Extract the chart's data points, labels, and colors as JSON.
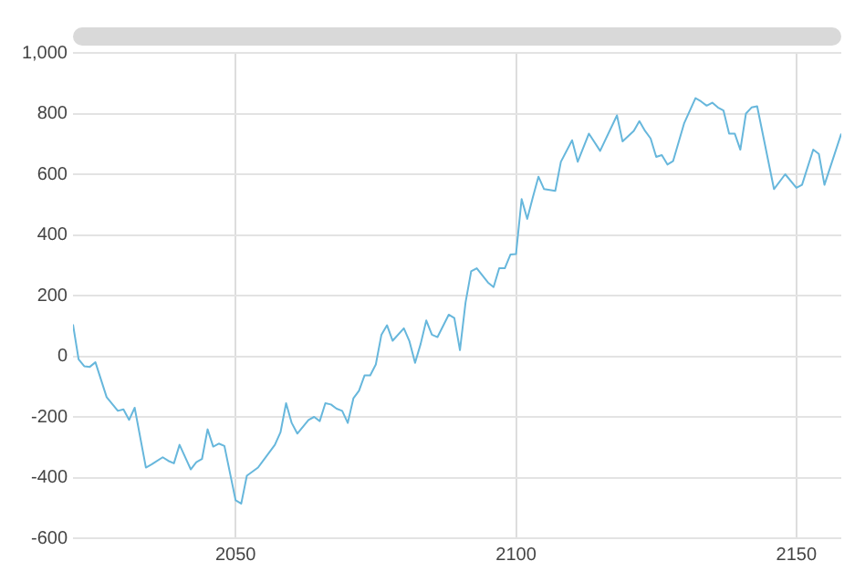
{
  "chart_data": {
    "type": "line",
    "x": [
      2021,
      2022,
      2023,
      2024,
      2025,
      2027,
      2029,
      2030,
      2031,
      2032,
      2034,
      2035,
      2037,
      2038,
      2039,
      2040,
      2042,
      2043,
      2044,
      2045,
      2046,
      2047,
      2048,
      2050,
      2051,
      2052,
      2054,
      2057,
      2058,
      2059,
      2060,
      2061,
      2063,
      2064,
      2065,
      2066,
      2067,
      2068,
      2069,
      2070,
      2071,
      2072,
      2073,
      2074,
      2075,
      2076,
      2077,
      2078,
      2080,
      2081,
      2082,
      2083,
      2084,
      2085,
      2086,
      2088,
      2089,
      2090,
      2091,
      2092,
      2093,
      2095,
      2096,
      2097,
      2098,
      2099,
      2100,
      2101,
      2102,
      2103,
      2104,
      2105,
      2107,
      2108,
      2110,
      2111,
      2113,
      2115,
      2118,
      2119,
      2121,
      2122,
      2123,
      2124,
      2125,
      2126,
      2127,
      2128,
      2130,
      2132,
      2133,
      2134,
      2135,
      2136,
      2137,
      2138,
      2139,
      2140,
      2141,
      2142,
      2143,
      2146,
      2148,
      2150,
      2151,
      2153,
      2154,
      2155,
      2158
    ],
    "series": [
      {
        "color": "#67b7dc",
        "values": [
          105,
          -10,
          -33,
          -35,
          -20,
          -135,
          -180,
          -175,
          -210,
          -170,
          -367,
          -357,
          -333,
          -345,
          -353,
          -292,
          -373,
          -349,
          -339,
          -241,
          -298,
          -288,
          -296,
          -475,
          -486,
          -394,
          -367,
          -292,
          -251,
          -155,
          -220,
          -255,
          -210,
          -200,
          -214,
          -155,
          -159,
          -173,
          -180,
          -220,
          -139,
          -114,
          -63,
          -63,
          -27,
          71,
          102,
          51,
          92,
          49,
          -22,
          41,
          118,
          71,
          63,
          137,
          126,
          20,
          177,
          280,
          290,
          243,
          228,
          290,
          290,
          335,
          337,
          518,
          453,
          524,
          592,
          551,
          545,
          641,
          712,
          641,
          734,
          677,
          794,
          708,
          743,
          775,
          743,
          718,
          657,
          663,
          632,
          643,
          769,
          851,
          840,
          826,
          836,
          820,
          810,
          734,
          734,
          681,
          800,
          820,
          824,
          551,
          600,
          555,
          565,
          681,
          667,
          565,
          734
        ]
      }
    ],
    "xlim": [
      2021,
      2158
    ],
    "xticks": [
      2050,
      2100,
      2150
    ],
    "ylim": [
      -600,
      1000
    ],
    "yticks": [
      -600,
      -400,
      -200,
      0,
      200,
      400,
      600,
      800,
      {
        "value": 1000,
        "label": "1,000"
      }
    ],
    "grid": true,
    "legend": false,
    "marker": "none",
    "line_style": "solid"
  }
}
